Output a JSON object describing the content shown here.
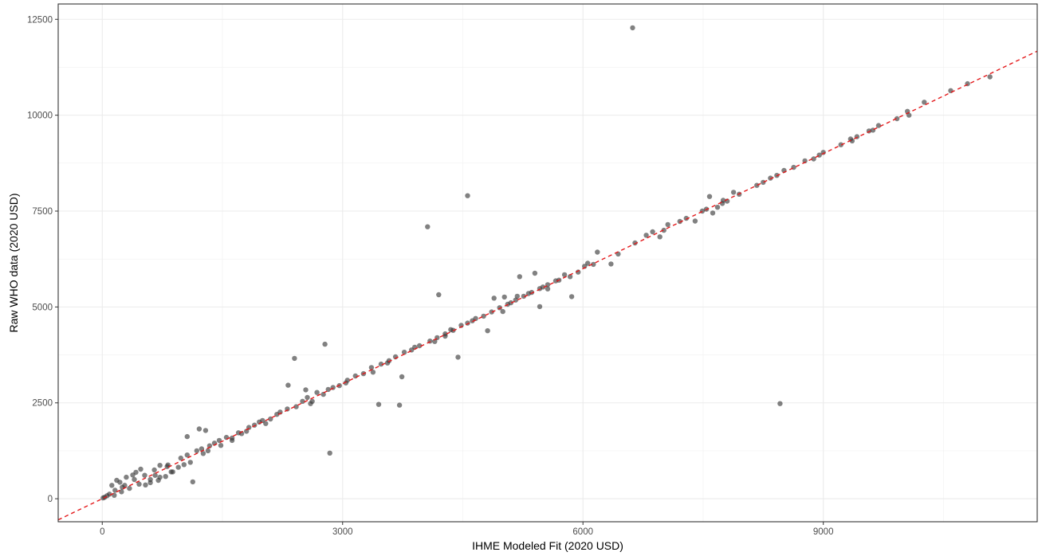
{
  "chart_data": {
    "type": "scatter",
    "title": "",
    "xlabel": "IHME Modeled Fit (2020 USD)",
    "ylabel": "Raw WHO data (2020 USD)",
    "xlim": [
      -550,
      11670
    ],
    "ylim": [
      -600,
      12900
    ],
    "x_ticks": [
      0,
      3000,
      6000,
      9000
    ],
    "x_tick_labels": [
      "0",
      "3000",
      "6000",
      "9000"
    ],
    "y_ticks": [
      0,
      2500,
      5000,
      7500,
      10000,
      12500
    ],
    "y_tick_labels": [
      "0",
      "2500",
      "5000",
      "7500",
      "10000",
      "12500"
    ],
    "grid": true,
    "reference_line": {
      "style": "dashed",
      "slope": 1,
      "intercept": 0,
      "color": "#e41a1c"
    },
    "point_color": "#333333",
    "series": [
      {
        "points": [
          [
            6620,
            12280
          ],
          [
            4560,
            7900
          ],
          [
            4060,
            7090
          ],
          [
            4200,
            5320
          ],
          [
            2780,
            4030
          ],
          [
            2400,
            3660
          ],
          [
            2840,
            1190
          ],
          [
            3450,
            2460
          ],
          [
            3710,
            2440
          ],
          [
            8460,
            2480
          ],
          [
            4440,
            3690
          ],
          [
            3740,
            3180
          ],
          [
            1130,
            440
          ],
          [
            2320,
            2960
          ],
          [
            1210,
            1820
          ],
          [
            1060,
            1620
          ],
          [
            1290,
            1780
          ],
          [
            4810,
            4380
          ],
          [
            5860,
            5270
          ],
          [
            4890,
            5230
          ],
          [
            5000,
            4880
          ],
          [
            5020,
            5260
          ],
          [
            5180,
            5280
          ],
          [
            5210,
            5790
          ],
          [
            5400,
            5880
          ],
          [
            5460,
            5010
          ],
          [
            5560,
            5470
          ],
          [
            5700,
            5700
          ],
          [
            5770,
            5840
          ],
          [
            5840,
            5790
          ],
          [
            5940,
            5910
          ],
          [
            6020,
            6060
          ],
          [
            6060,
            6140
          ],
          [
            6130,
            6110
          ],
          [
            6180,
            6430
          ],
          [
            6350,
            6120
          ],
          [
            6440,
            6380
          ],
          [
            6650,
            6670
          ],
          [
            6790,
            6870
          ],
          [
            6870,
            6960
          ],
          [
            6960,
            6830
          ],
          [
            7010,
            7000
          ],
          [
            7060,
            7150
          ],
          [
            7210,
            7230
          ],
          [
            7290,
            7310
          ],
          [
            7400,
            7240
          ],
          [
            7490,
            7500
          ],
          [
            7540,
            7550
          ],
          [
            7580,
            7880
          ],
          [
            7620,
            7450
          ],
          [
            7680,
            7600
          ],
          [
            7750,
            7780
          ],
          [
            7800,
            7760
          ],
          [
            7880,
            7990
          ],
          [
            7950,
            7940
          ],
          [
            8170,
            8170
          ],
          [
            8250,
            8250
          ],
          [
            8340,
            8360
          ],
          [
            8420,
            8430
          ],
          [
            8510,
            8560
          ],
          [
            8630,
            8640
          ],
          [
            8770,
            8810
          ],
          [
            8880,
            8860
          ],
          [
            9000,
            9030
          ],
          [
            9220,
            9230
          ],
          [
            9340,
            9380
          ],
          [
            9420,
            9440
          ],
          [
            9570,
            9590
          ],
          [
            9620,
            9610
          ],
          [
            9690,
            9730
          ],
          [
            10070,
            10000
          ],
          [
            10260,
            10340
          ],
          [
            10590,
            10640
          ],
          [
            10800,
            10820
          ],
          [
            11080,
            11000
          ],
          [
            9920,
            9910
          ],
          [
            10050,
            10100
          ],
          [
            8950,
            8960
          ],
          [
            9360,
            9330
          ],
          [
            7740,
            7700
          ],
          [
            180,
            480
          ],
          [
            220,
            430
          ],
          [
            120,
            350
          ],
          [
            300,
            560
          ],
          [
            420,
            690
          ],
          [
            480,
            770
          ],
          [
            380,
            620
          ],
          [
            650,
            750
          ],
          [
            720,
            560
          ],
          [
            820,
            880
          ],
          [
            540,
            360
          ],
          [
            600,
            420
          ],
          [
            700,
            480
          ],
          [
            790,
            580
          ],
          [
            880,
            700
          ],
          [
            950,
            820
          ],
          [
            1020,
            890
          ],
          [
            1100,
            950
          ],
          [
            1180,
            1250
          ],
          [
            1260,
            1180
          ],
          [
            1320,
            1250
          ],
          [
            1400,
            1450
          ],
          [
            1480,
            1390
          ],
          [
            1550,
            1600
          ],
          [
            1620,
            1580
          ],
          [
            1700,
            1720
          ],
          [
            1800,
            1760
          ],
          [
            1900,
            1920
          ],
          [
            2000,
            2040
          ],
          [
            2100,
            2080
          ],
          [
            2220,
            2260
          ],
          [
            2310,
            2340
          ],
          [
            2420,
            2400
          ],
          [
            2500,
            2540
          ],
          [
            2560,
            2640
          ],
          [
            2620,
            2540
          ],
          [
            2680,
            2770
          ],
          [
            2760,
            2720
          ],
          [
            2880,
            2900
          ],
          [
            2960,
            2950
          ],
          [
            3060,
            3090
          ],
          [
            3160,
            3200
          ],
          [
            3260,
            3260
          ],
          [
            3360,
            3420
          ],
          [
            3480,
            3510
          ],
          [
            3560,
            3540
          ],
          [
            3660,
            3700
          ],
          [
            3770,
            3820
          ],
          [
            3860,
            3880
          ],
          [
            3960,
            3990
          ],
          [
            4090,
            4110
          ],
          [
            4180,
            4200
          ],
          [
            4280,
            4300
          ],
          [
            4380,
            4390
          ],
          [
            4480,
            4520
          ],
          [
            4560,
            4580
          ],
          [
            4660,
            4700
          ],
          [
            4760,
            4760
          ],
          [
            4860,
            4870
          ],
          [
            4960,
            4980
          ],
          [
            5060,
            5070
          ],
          [
            5160,
            5180
          ],
          [
            5260,
            5280
          ],
          [
            5360,
            5380
          ],
          [
            5460,
            5480
          ],
          [
            5560,
            5580
          ],
          [
            5660,
            5680
          ],
          [
            2600,
            2480
          ],
          [
            2540,
            2840
          ],
          [
            2040,
            1960
          ],
          [
            1830,
            1860
          ],
          [
            1460,
            1520
          ],
          [
            1620,
            1520
          ],
          [
            980,
            1060
          ],
          [
            860,
            700
          ],
          [
            720,
            870
          ],
          [
            600,
            500
          ],
          [
            530,
            610
          ],
          [
            460,
            380
          ],
          [
            400,
            500
          ],
          [
            340,
            270
          ],
          [
            280,
            350
          ],
          [
            240,
            180
          ],
          [
            160,
            220
          ],
          [
            90,
            120
          ],
          [
            60,
            80
          ],
          [
            30,
            40
          ],
          [
            10,
            20
          ],
          [
            150,
            90
          ],
          [
            250,
            300
          ],
          [
            3380,
            3300
          ],
          [
            3580,
            3600
          ],
          [
            3900,
            3950
          ],
          [
            4150,
            4100
          ],
          [
            4350,
            4410
          ],
          [
            4620,
            4640
          ],
          [
            5100,
            5110
          ],
          [
            5320,
            5350
          ],
          [
            5500,
            5520
          ],
          [
            4280,
            4240
          ],
          [
            3040,
            3020
          ],
          [
            2820,
            2850
          ],
          [
            2180,
            2200
          ],
          [
            1960,
            2000
          ],
          [
            1740,
            1700
          ],
          [
            1240,
            1300
          ],
          [
            1340,
            1380
          ],
          [
            1060,
            1140
          ],
          [
            810,
            840
          ],
          [
            660,
            610
          ]
        ]
      }
    ]
  }
}
